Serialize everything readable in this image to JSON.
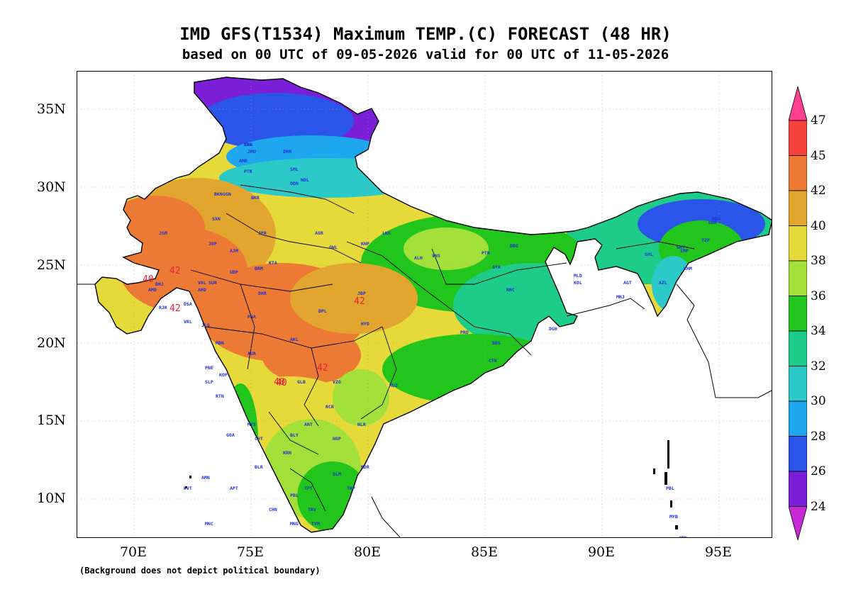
{
  "header": {
    "title": "IMD GFS(T1534) Maximum TEMP.(C) FORECAST (48 HR)",
    "subtitle": "based on 00 UTC of 09-05-2026 valid for 00 UTC of 11-05-2026"
  },
  "axes": {
    "lat_labels": [
      "35N",
      "30N",
      "25N",
      "20N",
      "15N",
      "10N"
    ],
    "lon_labels": [
      "70E",
      "75E",
      "80E",
      "85E",
      "90E",
      "95E"
    ]
  },
  "footnote": "(Background does not depict political boundary)",
  "colorbar": {
    "labels": [
      "47",
      "45",
      "42",
      "40",
      "38",
      "36",
      "34",
      "32",
      "30",
      "28",
      "26",
      "24"
    ],
    "colors": [
      "#ff3f8f",
      "#f5423c",
      "#ec7a34",
      "#e2a62f",
      "#e6d93a",
      "#a4e03a",
      "#21c51b",
      "#1dcc88",
      "#2cc9c9",
      "#1ea6ee",
      "#2a55e8",
      "#7b1ed8",
      "#c629d6"
    ]
  },
  "contour_labels": [
    {
      "text": "40"
    },
    {
      "text": "42"
    },
    {
      "text": "42"
    },
    {
      "text": "42"
    },
    {
      "text": "40"
    },
    {
      "text": "42"
    },
    {
      "text": "40"
    }
  ],
  "stations": [
    "SRN",
    "JMU",
    "DRM",
    "AMR",
    "PTK",
    "SML",
    "DDN",
    "NDL",
    "BKN",
    "JSM",
    "GGN",
    "BKR",
    "SXN",
    "JDP",
    "JPR",
    "AJM",
    "BRM",
    "UDP",
    "KTA",
    "VAL",
    "AMD",
    "BHJ",
    "DSA",
    "RJK",
    "VRL",
    "DHR",
    "PNA",
    "JBP",
    "BPL",
    "GWL",
    "AGR",
    "LKN",
    "KNP",
    "AHD",
    "ALH",
    "VNS",
    "PTN",
    "DBG",
    "GYA",
    "RNC",
    "DGH",
    "MNJ",
    "KOL",
    "BBS",
    "PRD",
    "CTK",
    "VZG",
    "HYD",
    "NGP",
    "ANT",
    "KRN",
    "BLR",
    "MYS",
    "MNG",
    "CHN",
    "TPT",
    "NLR",
    "SLM",
    "MDR",
    "TRP",
    "TRV",
    "TVM",
    "PBL",
    "IMP",
    "KHM",
    "GHY",
    "TZP",
    "DBR",
    "DBG",
    "SHL",
    "AGT",
    "AZL",
    "MLD",
    "CHT",
    "GOA",
    "RTN",
    "SLP",
    "PNE",
    "MBN",
    "JLG",
    "SUR",
    "AKL",
    "AUR",
    "KOP",
    "GLB",
    "RCR",
    "BLY",
    "MUZ",
    "AMN",
    "KVT",
    "APT",
    "MNC",
    "PBL",
    "MYB",
    "CRN",
    "NCW",
    "KDL"
  ]
}
